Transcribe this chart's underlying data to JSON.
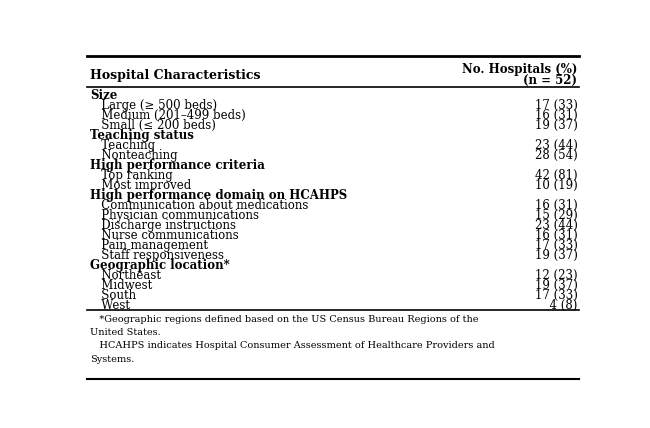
{
  "title_left": "Hospital Characteristics",
  "title_right_line1": "No. Hospitals (%)",
  "title_right_line2": "(n = 52)",
  "rows": [
    {
      "label": "Size",
      "value": "",
      "indent": 0,
      "bold": true
    },
    {
      "label": "   Large (≥ 500 beds)",
      "value": "17 (33)",
      "indent": 0,
      "bold": false
    },
    {
      "label": "   Medium (201–499 beds)",
      "value": "16 (31)",
      "indent": 0,
      "bold": false
    },
    {
      "label": "   Small (≤ 200 beds)",
      "value": "19 (37)",
      "indent": 0,
      "bold": false
    },
    {
      "label": "Teaching status",
      "value": "",
      "indent": 0,
      "bold": true
    },
    {
      "label": "   Teaching",
      "value": "23 (44)",
      "indent": 0,
      "bold": false
    },
    {
      "label": "   Nonteaching",
      "value": "28 (54)",
      "indent": 0,
      "bold": false
    },
    {
      "label": "High performance criteria",
      "value": "",
      "indent": 0,
      "bold": true
    },
    {
      "label": "   Top ranking",
      "value": "42 (81)",
      "indent": 0,
      "bold": false
    },
    {
      "label": "   Most improved",
      "value": "10 (19)",
      "indent": 0,
      "bold": false
    },
    {
      "label": "High performance domain on HCAHPS",
      "value": "",
      "indent": 0,
      "bold": true
    },
    {
      "label": "   Communication about medications",
      "value": "16 (31)",
      "indent": 0,
      "bold": false
    },
    {
      "label": "   Physician communications",
      "value": "15 (29)",
      "indent": 0,
      "bold": false
    },
    {
      "label": "   Discharge instructions",
      "value": "23 (44)",
      "indent": 0,
      "bold": false
    },
    {
      "label": "   Nurse communications",
      "value": "16 (31)",
      "indent": 0,
      "bold": false
    },
    {
      "label": "   Pain management",
      "value": "17 (33)",
      "indent": 0,
      "bold": false
    },
    {
      "label": "   Staff responsiveness",
      "value": "19 (37)",
      "indent": 0,
      "bold": false
    },
    {
      "label": "Geographic location*",
      "value": "",
      "indent": 0,
      "bold": true
    },
    {
      "label": "   Northeast",
      "value": "12 (23)",
      "indent": 0,
      "bold": false
    },
    {
      "label": "   Midwest",
      "value": "19 (37)",
      "indent": 0,
      "bold": false
    },
    {
      "label": "   South",
      "value": "17 (33)",
      "indent": 0,
      "bold": false
    },
    {
      "label": "   West",
      "value": "  4 (8)",
      "indent": 0,
      "bold": false
    }
  ],
  "footnote1": "   *Geographic regions defined based on the US Census Bureau Regions of the United States.",
  "footnote2": "   HCAHPS indicates Hospital Consumer Assessment of Healthcare Providers and Systems.",
  "bg_color": "#ffffff",
  "text_color": "#000000",
  "font_size": 8.5,
  "header_font_size": 8.5
}
